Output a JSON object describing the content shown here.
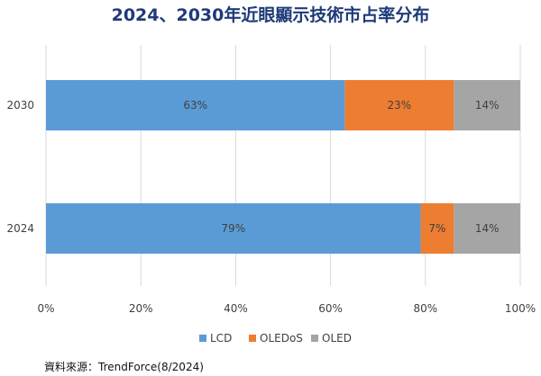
{
  "chart_data": {
    "type": "bar",
    "orientation": "horizontal",
    "stacked": true,
    "title": "2024、2030年近眼顯示技術市占率分布",
    "categories": [
      "2030",
      "2024"
    ],
    "series": [
      {
        "name": "LCD",
        "values": [
          63,
          79
        ],
        "labels": [
          "63%",
          "79%"
        ],
        "color": "#5b9bd5"
      },
      {
        "name": "OLEDoS",
        "values": [
          23,
          7
        ],
        "labels": [
          "23%",
          "7%"
        ],
        "color": "#ed7d31"
      },
      {
        "name": "OLED",
        "values": [
          14,
          14
        ],
        "labels": [
          "14%",
          "14%"
        ],
        "color": "#a5a5a5"
      }
    ],
    "xlim": [
      0,
      100
    ],
    "x_ticks": [
      0,
      20,
      40,
      60,
      80,
      100
    ],
    "x_tick_labels": [
      "0%",
      "20%",
      "40%",
      "60%",
      "80%",
      "100%"
    ],
    "grid": "vertical",
    "legend_position": "bottom"
  },
  "source_text": "資料來源：TrendForce(8/2024)"
}
